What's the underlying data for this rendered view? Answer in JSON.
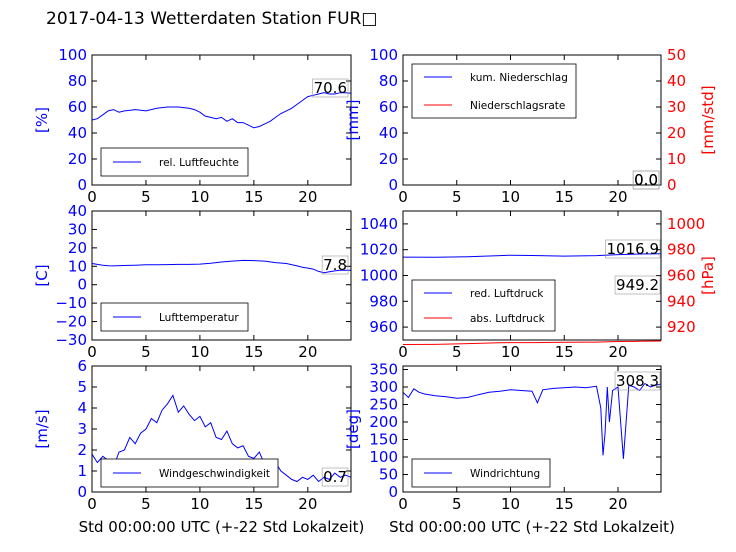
{
  "title": "2017-04-13 Wetterdaten Station FUR□",
  "colors": {
    "primary": "#0000ff",
    "secondary": "#ff0000",
    "axis": "#000000"
  },
  "xlabel": "Std 00:00:00 UTC (+-22 Std Lokalzeit)",
  "chart_data": [
    {
      "id": "humidity",
      "type": "line",
      "ylabel": "[%]",
      "xlim": [
        0,
        24
      ],
      "ylim": [
        0,
        100
      ],
      "xticks": [
        "0",
        "5",
        "10",
        "15",
        "20"
      ],
      "yticks": [
        "0",
        "20",
        "40",
        "60",
        "80",
        "100"
      ],
      "legend": [
        "rel. Luftfeuchte"
      ],
      "legend_position": "lower-left",
      "annotations": [
        "70.6"
      ],
      "series": [
        {
          "name": "rel. Luftfeuchte",
          "color": "#0000ff",
          "x": [
            0,
            0.5,
            1,
            1.5,
            2,
            2.5,
            3,
            4,
            5,
            6,
            7,
            8,
            9,
            9.5,
            10,
            10.5,
            11,
            11.5,
            12,
            12.5,
            13,
            13.5,
            14,
            14.5,
            15,
            15.5,
            16,
            16.5,
            17,
            17.5,
            18,
            18.5,
            19,
            19.5,
            20,
            20.5,
            21,
            21.5,
            22,
            22.5,
            23,
            23.5,
            24
          ],
          "y": [
            50,
            51,
            54,
            57,
            58,
            56,
            57,
            58,
            57,
            59,
            60,
            60,
            59,
            58,
            56,
            53,
            52,
            51,
            52,
            49,
            51,
            48,
            48,
            46,
            44,
            45,
            47,
            49,
            52,
            55,
            57,
            59,
            62,
            65,
            68,
            69,
            70,
            71,
            70,
            70,
            71,
            71,
            70.6
          ]
        }
      ]
    },
    {
      "id": "precipitation",
      "type": "line",
      "ylabel": "[mm]",
      "ylabel_right": "[mm/std]",
      "xlim": [
        0,
        24
      ],
      "ylim": [
        0,
        100
      ],
      "ylim_right": [
        0,
        50
      ],
      "xticks": [
        "0",
        "5",
        "10",
        "15",
        "20"
      ],
      "yticks": [
        "0",
        "20",
        "40",
        "60",
        "80",
        "100"
      ],
      "yticks_right": [
        "0",
        "10",
        "20",
        "30",
        "40",
        "50"
      ],
      "legend": [
        "kum. Niederschlag",
        "Niederschlagsrate"
      ],
      "legend_position": "upper-left",
      "annotations": [
        "0.0",
        "0.0"
      ],
      "series": [
        {
          "name": "kum. Niederschlag",
          "color": "#0000ff",
          "x": [
            0,
            24
          ],
          "y": [
            0,
            0
          ]
        },
        {
          "name": "Niederschlagsrate",
          "color": "#ff0000",
          "x": [
            0,
            24
          ],
          "y": [
            0,
            0
          ]
        }
      ]
    },
    {
      "id": "temperature",
      "type": "line",
      "ylabel": "[C]",
      "xlim": [
        0,
        24
      ],
      "ylim": [
        -30,
        40
      ],
      "xticks": [
        "0",
        "5",
        "10",
        "15",
        "20"
      ],
      "yticks": [
        "−30",
        "−20",
        "−10",
        "0",
        "10",
        "20",
        "30",
        "40"
      ],
      "legend": [
        "Lufttemperatur"
      ],
      "legend_position": "lower-left",
      "annotations": [
        "7.8"
      ],
      "series": [
        {
          "name": "Lufttemperatur",
          "color": "#0000ff",
          "x": [
            0,
            0.5,
            1,
            1.5,
            2,
            3,
            4,
            5,
            6,
            7,
            8,
            9,
            10,
            11,
            12,
            13,
            14,
            15,
            16,
            17,
            18,
            19,
            19.5,
            20,
            20.5,
            21,
            21.5,
            22,
            22.5,
            23,
            23.5,
            24
          ],
          "y": [
            11.5,
            11,
            10.6,
            10.3,
            10.2,
            10.4,
            10.6,
            10.8,
            10.8,
            10.9,
            11,
            11,
            11.2,
            11.7,
            12.3,
            12.8,
            13.2,
            13.1,
            12.8,
            12,
            11.5,
            10.2,
            9.5,
            9,
            8.5,
            7.2,
            6.5,
            7,
            7.5,
            7.8,
            7.8,
            7.8
          ]
        }
      ]
    },
    {
      "id": "pressure",
      "type": "line",
      "ylabel_right": "[hPa]",
      "xlim": [
        0,
        24
      ],
      "ylim": [
        950,
        1050
      ],
      "ylim_right": [
        910,
        1010
      ],
      "xticks": [
        "0",
        "5",
        "10",
        "15",
        "20"
      ],
      "yticks": [
        "960",
        "980",
        "1000",
        "1020",
        "1040"
      ],
      "yticks_right": [
        "920",
        "940",
        "960",
        "980",
        "1000"
      ],
      "legend": [
        "red. Luftdruck",
        "abs. Luftdruck"
      ],
      "legend_position": "lower-left",
      "annotations": [
        "1016.9",
        "949.2"
      ],
      "series": [
        {
          "name": "red. Luftdruck",
          "color": "#0000ff",
          "x": [
            0,
            3,
            6,
            9,
            10,
            12,
            15,
            18,
            20,
            22,
            24
          ],
          "y": [
            1014.3,
            1014.1,
            1014.5,
            1015.4,
            1015.7,
            1015.5,
            1015.0,
            1015.4,
            1016.2,
            1016.7,
            1016.9
          ]
        },
        {
          "name": "abs. Luftdruck",
          "color": "#ff0000",
          "x": [
            0,
            3,
            6,
            9,
            10,
            12,
            15,
            18,
            20,
            22,
            24
          ],
          "y": [
            946.5,
            946.6,
            947.2,
            947.8,
            948.0,
            948.0,
            948.2,
            948.4,
            948.8,
            949.0,
            949.2
          ]
        }
      ]
    },
    {
      "id": "wind_speed",
      "type": "line",
      "ylabel": "[m/s]",
      "xlim": [
        0,
        24
      ],
      "ylim": [
        0,
        6
      ],
      "xticks": [
        "0",
        "5",
        "10",
        "15",
        "20"
      ],
      "yticks": [
        "0",
        "1",
        "2",
        "3",
        "4",
        "5",
        "6"
      ],
      "legend": [
        "Windgeschwindigkeit"
      ],
      "legend_position": "lower-center",
      "annotations": [
        "0.7"
      ],
      "series": [
        {
          "name": "Windgeschwindigkeit",
          "color": "#0000ff",
          "x": [
            0,
            0.5,
            1,
            1.5,
            2,
            2.5,
            3,
            3.5,
            4,
            4.5,
            5,
            5.5,
            6,
            6.5,
            7,
            7.5,
            8,
            8.5,
            9,
            9.5,
            10,
            10.5,
            11,
            11.5,
            12,
            12.5,
            13,
            13.5,
            14,
            14.5,
            15,
            15.5,
            16,
            16.5,
            17,
            17.5,
            18,
            18.5,
            19,
            19.5,
            20,
            20.5,
            21,
            21.5,
            22,
            22.5,
            23,
            23.5,
            24
          ],
          "y": [
            1.8,
            1.4,
            1.7,
            1.5,
            1.2,
            1.9,
            2.0,
            2.6,
            2.3,
            2.8,
            3.0,
            3.5,
            3.3,
            3.9,
            4.2,
            4.6,
            3.8,
            4.1,
            3.7,
            3.4,
            3.6,
            3.1,
            3.3,
            2.6,
            2.5,
            2.9,
            2.3,
            2.1,
            2.2,
            1.7,
            1.6,
            1.9,
            1.3,
            1.1,
            1.4,
            1.0,
            0.8,
            0.6,
            0.5,
            0.7,
            0.6,
            0.8,
            0.5,
            0.7,
            0.6,
            0.9,
            0.7,
            0.8,
            0.7
          ]
        }
      ]
    },
    {
      "id": "wind_direction",
      "type": "line",
      "ylabel": "[deg]",
      "xlim": [
        0,
        24
      ],
      "ylim": [
        0,
        360
      ],
      "xticks": [
        "0",
        "5",
        "10",
        "15",
        "20"
      ],
      "yticks": [
        "0",
        "50",
        "100",
        "150",
        "200",
        "250",
        "300",
        "350"
      ],
      "legend": [
        "Windrichtung"
      ],
      "legend_position": "lower-left",
      "annotations": [
        "308.3"
      ],
      "series": [
        {
          "name": "Windrichtung",
          "color": "#0000ff",
          "x": [
            0,
            0.5,
            1,
            1.5,
            2,
            3,
            4,
            5,
            6,
            7,
            8,
            9,
            10,
            11,
            12,
            12.5,
            13,
            14,
            15,
            16,
            17,
            18,
            18.4,
            18.6,
            18.8,
            19,
            19.2,
            19.5,
            20,
            20.5,
            21,
            21.5,
            22,
            22.5,
            23,
            23.5,
            24
          ],
          "y": [
            285,
            270,
            295,
            285,
            280,
            275,
            272,
            268,
            270,
            278,
            285,
            288,
            292,
            290,
            288,
            255,
            292,
            296,
            298,
            300,
            298,
            302,
            240,
            105,
            170,
            300,
            200,
            290,
            300,
            95,
            305,
            300,
            290,
            310,
            300,
            305,
            308.3
          ]
        }
      ]
    }
  ]
}
